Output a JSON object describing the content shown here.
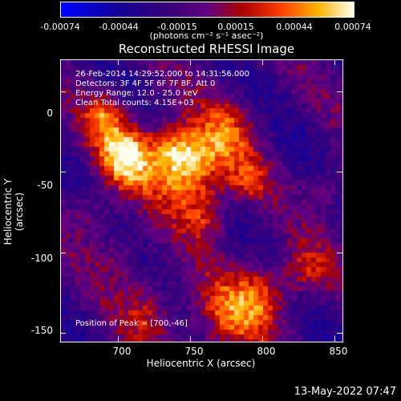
{
  "colorbar": {
    "tick_labels": [
      "-0.00074",
      "-0.00044",
      "-0.00015",
      "0.00015",
      "0.00044",
      "0.00074"
    ],
    "unit": "(photons cm⁻² s⁻¹ asec⁻²)"
  },
  "chart_data": {
    "type": "heatmap",
    "title": "Reconstructed RHESSI Image",
    "xlabel": "Heliocentric X (arcsec)",
    "ylabel": "Heliocentric Y (arcsec)",
    "xlim": [
      660,
      855
    ],
    "ylim": [
      -155,
      20
    ],
    "x_ticks": [
      700,
      750,
      800,
      850
    ],
    "y_ticks": [
      0,
      -50,
      -100,
      -150
    ],
    "colorbar_range": [
      -0.00074,
      0.00074
    ],
    "peak": [
      700,
      -46
    ]
  },
  "info": {
    "time_range": "26-Feb-2014 14:29:52.000 to 14:31:56.000",
    "detectors": "Detectors: 3F 4F 5F 6F 7F 8F, Att 0",
    "energy": "Energy Range: 12.0 - 25.0 keV",
    "clean": "Clean     Total counts: 4.15E+03",
    "peak": "Position of Peak = [700,-46]"
  },
  "footer": {
    "timestamp": "13-May-2022 07:47"
  }
}
